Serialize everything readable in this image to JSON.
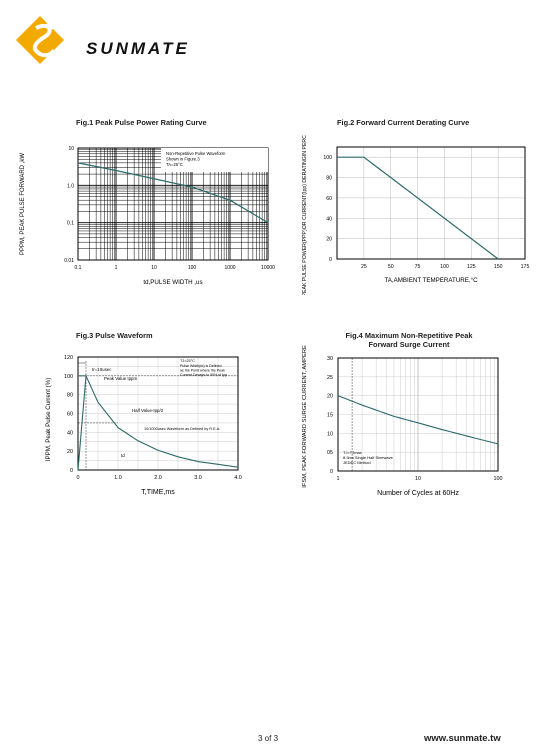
{
  "brand": "SUNMATE",
  "footer": {
    "page": "3 of 3",
    "url": "www.sunmate.tw"
  },
  "chart_data": [
    {
      "id": "fig1",
      "type": "line",
      "title": "Fig.1  Peak Pulse Power Rating Curve",
      "xlabel": "td,PULSE WIDTH ,us",
      "ylabel": "PPPM, PEAK PULSE  FORWARD ,kW",
      "xscale": "log",
      "yscale": "log",
      "xlim": [
        0.1,
        10000
      ],
      "ylim": [
        0.01,
        10
      ],
      "xticks": [
        "0.1",
        "1",
        "10",
        "100",
        "1000",
        "10000"
      ],
      "yticks": [
        "0.01",
        "0.1",
        "1.0",
        "10"
      ],
      "grid": true,
      "annotations": [
        "Non-Repetitive Pulse Waveform",
        "Shown in Figure.3",
        "TA=25°C"
      ],
      "series": [
        {
          "x": [
            0.1,
            1,
            10,
            100,
            1000,
            10000
          ],
          "y": [
            4,
            2.5,
            1.5,
            0.9,
            0.4,
            0.1
          ]
        }
      ]
    },
    {
      "id": "fig2",
      "type": "line",
      "title": "Fig.2  Forward Current Derating Curve",
      "xlabel": "TA,AMBIENT TEMPERATURE,°C",
      "ylabel": "PEAK PULSE POWER(PPP)OR CURRENT(Ipp) DERATINGIN PERCENTAGE%",
      "xlim": [
        0,
        175
      ],
      "ylim": [
        0,
        110
      ],
      "xticks": [
        "25",
        "50",
        "75",
        "100",
        "125",
        "150",
        "175"
      ],
      "yticks": [
        "0",
        "20",
        "40",
        "60",
        "80",
        "100"
      ],
      "grid": true,
      "series": [
        {
          "x": [
            0,
            25,
            150
          ],
          "y": [
            100,
            100,
            0
          ]
        }
      ]
    },
    {
      "id": "fig3",
      "type": "line",
      "title": "Fig.3  Pulse Waveform",
      "xlabel": "T,TIME,ms",
      "ylabel": "IPPM, Peak Pulse Current (%)",
      "xlim": [
        0,
        4.0
      ],
      "ylim": [
        0,
        120
      ],
      "xticks": [
        "0",
        "1.0",
        "2.0",
        "3.0",
        "4.0"
      ],
      "yticks": [
        "0",
        "20",
        "40",
        "60",
        "80",
        "100",
        "120"
      ],
      "grid": true,
      "annotations": [
        "tr=10usec",
        "Peak  Value  Ippm",
        "Half Value-Ipp/2",
        "10/1000usec  Waveform as Defined by R.E.A.",
        "TJ=25°C",
        "Pulse  Width(td) is Defined",
        "as the Point where the Peak",
        "Current Decays to 50% of Ipp",
        "td"
      ],
      "series": [
        {
          "x": [
            0,
            0.2,
            0.5,
            1.0,
            1.5,
            2.0,
            2.5,
            3.0,
            3.5,
            4.0
          ],
          "y": [
            0,
            100,
            72,
            45,
            31,
            21,
            14,
            9,
            6,
            3
          ]
        }
      ]
    },
    {
      "id": "fig4",
      "type": "line",
      "title": "Fig.4  Maximum Non-Repetitive Peak Forward Surge Current",
      "xlabel": "Number of Cycles at 60Hz",
      "ylabel": "IFSM, PEAK FORWARD SURGE CURRENT, AMPERES",
      "xscale": "log",
      "xlim": [
        1,
        100
      ],
      "ylim": [
        0,
        30
      ],
      "xticks": [
        "1",
        "10",
        "100"
      ],
      "yticks": [
        "0",
        "05",
        "10",
        "15",
        "20",
        "25",
        "30"
      ],
      "grid": true,
      "annotations": [
        "TJ=TJmax",
        "8.3ms Single Half  Sinewave",
        "JEDEC Method"
      ],
      "series": [
        {
          "x": [
            1,
            2,
            5,
            10,
            20,
            50,
            100
          ],
          "y": [
            20,
            17.5,
            14.5,
            12.8,
            11,
            8.8,
            7.2
          ]
        }
      ]
    }
  ]
}
